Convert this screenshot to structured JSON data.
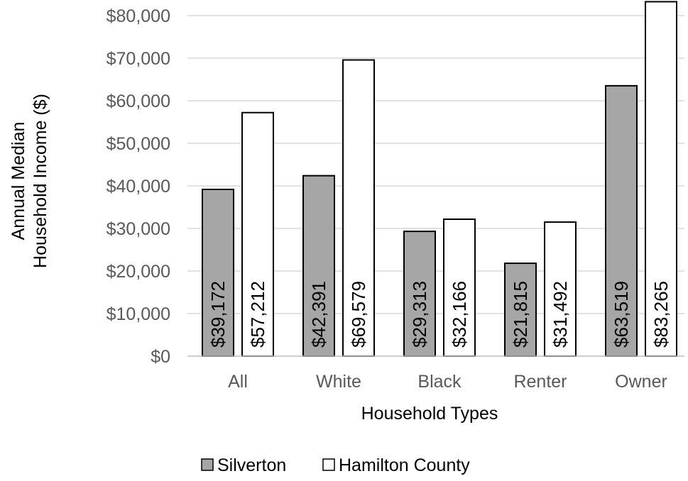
{
  "chart_data": {
    "type": "bar",
    "title": "",
    "xlabel": "Household Types",
    "ylabel_line1": "Annual Median",
    "ylabel_line2": "Household Income ($)",
    "categories": [
      "All",
      "White",
      "Black",
      "Renter",
      "Owner"
    ],
    "series": [
      {
        "name": "Silverton",
        "values": [
          39172,
          42391,
          29313,
          21815,
          63519
        ],
        "labels": [
          "$39,172",
          "$42,391",
          "$29,313",
          "$21,815",
          "$63,519"
        ],
        "color": "#a6a6a6"
      },
      {
        "name": "Hamilton County",
        "values": [
          57212,
          69579,
          32166,
          31492,
          83265
        ],
        "labels": [
          "$57,212",
          "$69,579",
          "$32,166",
          "$31,492",
          "$83,265"
        ],
        "color": "#ffffff"
      }
    ],
    "ylim": [
      0,
      80000
    ],
    "yticks": [
      0,
      10000,
      20000,
      30000,
      40000,
      50000,
      60000,
      70000,
      80000
    ],
    "ytick_labels": [
      "$0",
      "$10,000",
      "$20,000",
      "$30,000",
      "$40,000",
      "$50,000",
      "$60,000",
      "$70,000",
      "$80,000"
    ],
    "grid": true,
    "legend_position": "bottom",
    "colors": {
      "bar_outline": "#000000",
      "gridline": "#d9d9d9",
      "axis_line": "#bfbfbf",
      "tick_text": "#595959",
      "label_text": "#000000"
    }
  }
}
